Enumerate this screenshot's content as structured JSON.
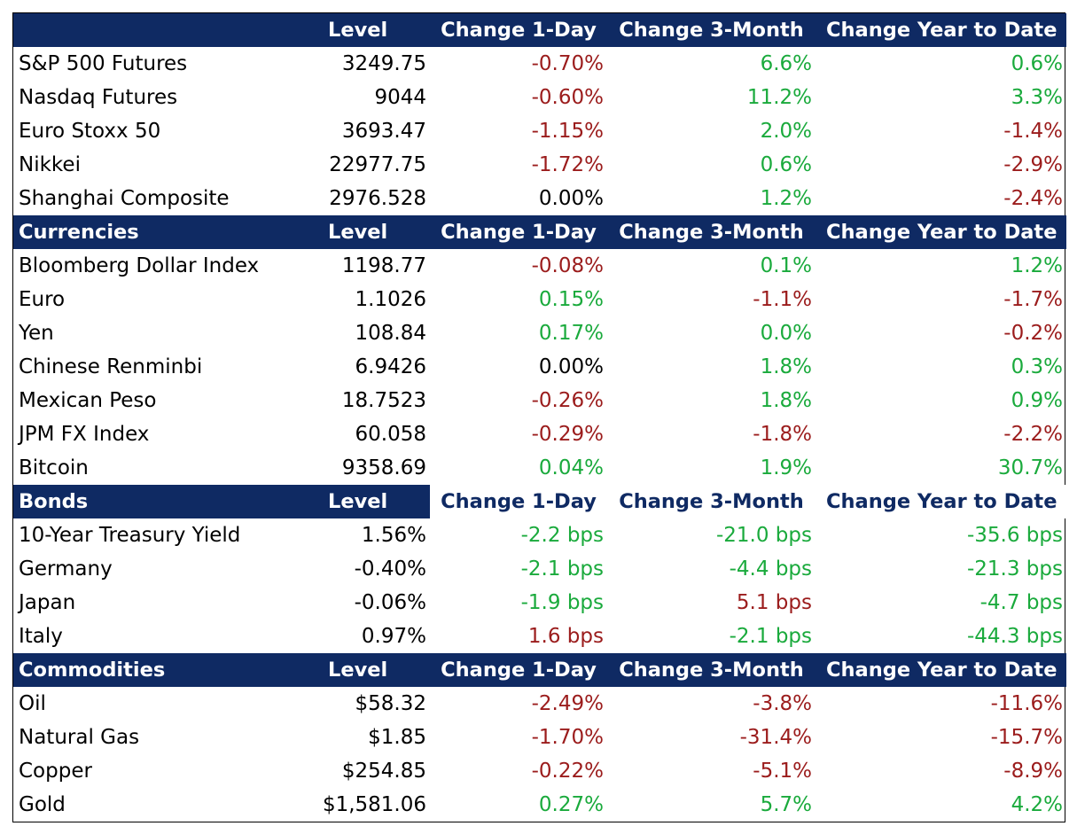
{
  "colors": {
    "header_bg": "#0f2a63",
    "positive": "#1aaa3c",
    "negative": "#9b1c1c",
    "neutral": "#000000"
  },
  "sections": [
    {
      "title": "",
      "headers": [
        "Level",
        "Change 1-Day",
        "Change 3-Month",
        "Change Year to Date"
      ],
      "rows": [
        {
          "name": "S&P 500 Futures",
          "level": "3249.75",
          "d1": "-0.70%",
          "d1_s": "neg",
          "m3": "6.6%",
          "m3_s": "pos",
          "ytd": "0.6%",
          "ytd_s": "pos"
        },
        {
          "name": "Nasdaq Futures",
          "level": "9044",
          "d1": "-0.60%",
          "d1_s": "neg",
          "m3": "11.2%",
          "m3_s": "pos",
          "ytd": "3.3%",
          "ytd_s": "pos"
        },
        {
          "name": "Euro Stoxx 50",
          "level": "3693.47",
          "d1": "-1.15%",
          "d1_s": "neg",
          "m3": "2.0%",
          "m3_s": "pos",
          "ytd": "-1.4%",
          "ytd_s": "neg"
        },
        {
          "name": "Nikkei",
          "level": "22977.75",
          "d1": "-1.72%",
          "d1_s": "neg",
          "m3": "0.6%",
          "m3_s": "pos",
          "ytd": "-2.9%",
          "ytd_s": "neg"
        },
        {
          "name": "Shanghai Composite",
          "level": "2976.528",
          "d1": "0.00%",
          "d1_s": "neu",
          "m3": "1.2%",
          "m3_s": "pos",
          "ytd": "-2.4%",
          "ytd_s": "neg"
        }
      ]
    },
    {
      "title": "Currencies",
      "headers": [
        "Level",
        "Change 1-Day",
        "Change 3-Month",
        "Change Year to Date"
      ],
      "rows": [
        {
          "name": "Bloomberg Dollar Index",
          "level": "1198.77",
          "d1": "-0.08%",
          "d1_s": "neg",
          "m3": "0.1%",
          "m3_s": "pos",
          "ytd": "1.2%",
          "ytd_s": "pos"
        },
        {
          "name": "Euro",
          "level": "1.1026",
          "d1": "0.15%",
          "d1_s": "pos",
          "m3": "-1.1%",
          "m3_s": "neg",
          "ytd": "-1.7%",
          "ytd_s": "neg"
        },
        {
          "name": "Yen",
          "level": "108.84",
          "d1": "0.17%",
          "d1_s": "pos",
          "m3": "0.0%",
          "m3_s": "pos",
          "ytd": "-0.2%",
          "ytd_s": "neg"
        },
        {
          "name": "Chinese Renminbi",
          "level": "6.9426",
          "d1": "0.00%",
          "d1_s": "neu",
          "m3": "1.8%",
          "m3_s": "pos",
          "ytd": "0.3%",
          "ytd_s": "pos"
        },
        {
          "name": "Mexican Peso",
          "level": "18.7523",
          "d1": "-0.26%",
          "d1_s": "neg",
          "m3": "1.8%",
          "m3_s": "pos",
          "ytd": "0.9%",
          "ytd_s": "pos"
        },
        {
          "name": "JPM FX Index",
          "level": "60.058",
          "d1": "-0.29%",
          "d1_s": "neg",
          "m3": "-1.8%",
          "m3_s": "neg",
          "ytd": "-2.2%",
          "ytd_s": "neg"
        },
        {
          "name": "Bitcoin",
          "level": "9358.69",
          "d1": "0.04%",
          "d1_s": "pos",
          "m3": "1.9%",
          "m3_s": "pos",
          "ytd": "30.7%",
          "ytd_s": "pos"
        }
      ]
    },
    {
      "title": "Bonds",
      "headers": [
        "Level",
        "Change 1-Day",
        "Change 3-Month",
        "Change Year to Date"
      ],
      "rows": [
        {
          "name": "10-Year Treasury Yield",
          "level": "1.56%",
          "d1": "-2.2 bps",
          "d1_s": "pos",
          "m3": "-21.0 bps",
          "m3_s": "pos",
          "ytd": "-35.6 bps",
          "ytd_s": "pos"
        },
        {
          "name": "Germany",
          "level": "-0.40%",
          "d1": "-2.1 bps",
          "d1_s": "pos",
          "m3": "-4.4 bps",
          "m3_s": "pos",
          "ytd": "-21.3 bps",
          "ytd_s": "pos"
        },
        {
          "name": "Japan",
          "level": "-0.06%",
          "d1": "-1.9 bps",
          "d1_s": "pos",
          "m3": "5.1 bps",
          "m3_s": "neg",
          "ytd": "-4.7 bps",
          "ytd_s": "pos"
        },
        {
          "name": "Italy",
          "level": "0.97%",
          "d1": "1.6 bps",
          "d1_s": "neg",
          "m3": "-2.1 bps",
          "m3_s": "pos",
          "ytd": "-44.3 bps",
          "ytd_s": "pos"
        }
      ]
    },
    {
      "title": "Commodities",
      "headers": [
        "Level",
        "Change 1-Day",
        "Change 3-Month",
        "Change Year to Date"
      ],
      "rows": [
        {
          "name": "Oil",
          "level": "$58.32",
          "d1": "-2.49%",
          "d1_s": "neg",
          "m3": "-3.8%",
          "m3_s": "neg",
          "ytd": "-11.6%",
          "ytd_s": "neg"
        },
        {
          "name": "Natural Gas",
          "level": "$1.85",
          "d1": "-1.70%",
          "d1_s": "neg",
          "m3": "-31.4%",
          "m3_s": "neg",
          "ytd": "-15.7%",
          "ytd_s": "neg"
        },
        {
          "name": "Copper",
          "level": "$254.85",
          "d1": "-0.22%",
          "d1_s": "neg",
          "m3": "-5.1%",
          "m3_s": "neg",
          "ytd": "-8.9%",
          "ytd_s": "neg"
        },
        {
          "name": "Gold",
          "level": "$1,581.06",
          "d1": "0.27%",
          "d1_s": "pos",
          "m3": "5.7%",
          "m3_s": "pos",
          "ytd": "4.2%",
          "ytd_s": "pos"
        }
      ]
    }
  ]
}
